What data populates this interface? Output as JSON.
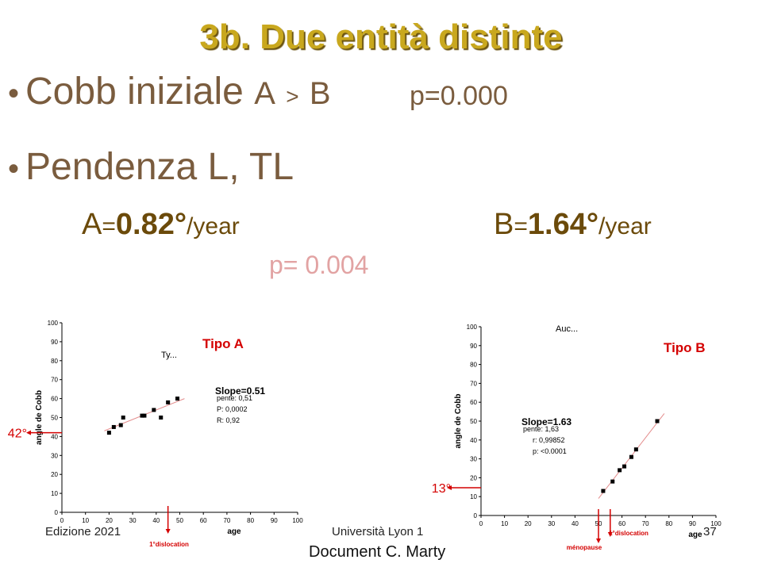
{
  "title": "3b. Due entità distinte",
  "bullet1": {
    "bullet": "•",
    "main": "Cobb iniziale",
    "a": "A",
    "gt": ">",
    "b": "B",
    "p": "p=0.000"
  },
  "bullet2": {
    "bullet": "•",
    "main": "Pendenza L, TL"
  },
  "rateA": {
    "letter": "A",
    "eq": "=",
    "value": "0.82°",
    "unit": "/year"
  },
  "rateB": {
    "letter": "B",
    "eq": "=",
    "value": "1.64°",
    "unit": "/year"
  },
  "p_rates": "p= 0.004",
  "footer": {
    "edition": "Edizione 2021",
    "university": "Università Lyon 1",
    "page": "37",
    "document": "Document C. Marty"
  },
  "colors": {
    "title": "#c9a81e",
    "text": "#7a5c3e",
    "red": "#d40000"
  },
  "chart_data": [
    {
      "type": "scatter",
      "title": "Ty...",
      "label": "Tipo A",
      "xlabel": "age",
      "ylabel": "angle de Cobb",
      "xlim": [
        0,
        100
      ],
      "ylim": [
        0,
        100
      ],
      "xticks": [
        0,
        10,
        20,
        30,
        40,
        50,
        60,
        70,
        80,
        90,
        100
      ],
      "yticks": [
        0,
        10,
        20,
        30,
        40,
        50,
        60,
        70,
        80,
        90,
        100
      ],
      "points": [
        [
          20,
          42
        ],
        [
          22,
          45
        ],
        [
          25,
          46
        ],
        [
          26,
          50
        ],
        [
          34,
          51
        ],
        [
          35,
          51
        ],
        [
          39,
          54
        ],
        [
          42,
          50
        ],
        [
          45,
          58
        ],
        [
          49,
          60
        ]
      ],
      "trendline": [
        [
          18,
          43
        ],
        [
          52,
          60
        ]
      ],
      "annotation": {
        "slope": "Slope=0.51",
        "pente": "pente: 0,51",
        "p": "P: 0,0002",
        "r": "R: 0,92"
      },
      "marker_left": "42°",
      "marker_bottom": "1°dislocation",
      "dislocation_age": 45
    },
    {
      "type": "scatter",
      "title": "Auc...",
      "label": "Tipo B",
      "xlabel": "age",
      "ylabel": "angle de Cobb",
      "xlim": [
        0,
        100
      ],
      "ylim": [
        0,
        100
      ],
      "xticks": [
        0,
        10,
        20,
        30,
        40,
        50,
        60,
        70,
        80,
        90,
        100
      ],
      "yticks": [
        0,
        10,
        20,
        30,
        40,
        50,
        60,
        70,
        80,
        90,
        100
      ],
      "points": [
        [
          52,
          13
        ],
        [
          56,
          18
        ],
        [
          59,
          24
        ],
        [
          61,
          26
        ],
        [
          64,
          31
        ],
        [
          66,
          35
        ],
        [
          75,
          50
        ]
      ],
      "trendline": [
        [
          50,
          9
        ],
        [
          78,
          54
        ]
      ],
      "annotation": {
        "slope": "Slope=1.63",
        "pente": "pente: 1,63",
        "r": "r: 0,99852",
        "p": "p: <0.0001"
      },
      "marker_left": "13°",
      "marker_bottom": "1°dislocation",
      "marker_bottom2": "ménopause",
      "dislocation_age": 55,
      "menopause_age": 50
    }
  ]
}
